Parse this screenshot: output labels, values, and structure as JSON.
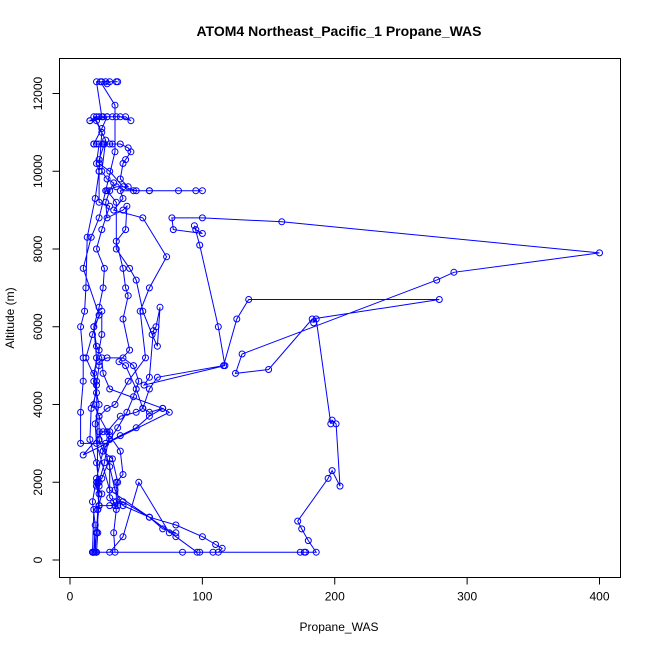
{
  "chart_data": {
    "type": "line",
    "title": "ATOM4 Northeast_Pacific_1 Propane_WAS",
    "xlabel": "Propane_WAS",
    "ylabel": "Altitude (m)",
    "xlim": [
      0,
      400
    ],
    "ylim": [
      0,
      12000
    ],
    "xticks": [
      0,
      100,
      200,
      300,
      400
    ],
    "yticks": [
      0,
      2000,
      4000,
      6000,
      8000,
      10000,
      12000
    ],
    "grid": false,
    "legend": "none",
    "color": "#0000ff",
    "series": [
      {
        "points": [
          [
            17,
            200
          ],
          [
            18,
            200
          ],
          [
            20,
            700
          ],
          [
            22,
            1400
          ],
          [
            21,
            2000
          ],
          [
            20,
            4600
          ],
          [
            12,
            5200
          ],
          [
            17,
            5800
          ],
          [
            22,
            6300
          ],
          [
            10,
            7500
          ],
          [
            16,
            8300
          ],
          [
            22,
            8800
          ],
          [
            27,
            9500
          ],
          [
            34,
            10500
          ],
          [
            34,
            11700
          ],
          [
            23,
            12300
          ],
          [
            27,
            12300
          ],
          [
            35,
            12300
          ],
          [
            36,
            12300
          ],
          [
            30,
            12300
          ],
          [
            28,
            12250
          ],
          [
            24,
            12300
          ],
          [
            20,
            12300
          ],
          [
            24,
            11400
          ],
          [
            15,
            11300
          ],
          [
            28,
            11400
          ],
          [
            24,
            11100
          ],
          [
            18,
            10700
          ],
          [
            30,
            10700
          ],
          [
            26,
            10700
          ],
          [
            22,
            10300
          ],
          [
            22,
            10200
          ],
          [
            30,
            10000
          ],
          [
            40,
            9600
          ],
          [
            50,
            9500
          ],
          [
            60,
            9500
          ],
          [
            100,
            9500
          ],
          [
            95,
            9500
          ],
          [
            82,
            9500
          ],
          [
            60,
            9500
          ],
          [
            48,
            9500
          ],
          [
            38,
            9500
          ],
          [
            40,
            9300
          ],
          [
            33,
            9000
          ],
          [
            55,
            8800
          ],
          [
            73,
            7800
          ],
          [
            60,
            7000
          ],
          [
            53,
            6400
          ],
          [
            57,
            5200
          ],
          [
            44,
            4600
          ],
          [
            34,
            4000
          ],
          [
            28,
            3900
          ],
          [
            22,
            3700
          ],
          [
            22,
            3100
          ],
          [
            25,
            2800
          ],
          [
            32,
            2600
          ],
          [
            36,
            2000
          ],
          [
            36,
            1400
          ],
          [
            34,
            1400
          ],
          [
            30,
            1400
          ],
          [
            22,
            1400
          ],
          [
            18,
            1300
          ],
          [
            17,
            200
          ],
          [
            18,
            200
          ],
          [
            20,
            700
          ],
          [
            22,
            1400
          ],
          [
            20,
            2000
          ],
          [
            24,
            2100
          ],
          [
            30,
            2600
          ],
          [
            30,
            1600
          ],
          [
            33,
            1500
          ],
          [
            35,
            1300
          ],
          [
            33,
            700
          ],
          [
            34,
            200
          ],
          [
            30,
            200
          ],
          [
            40,
            600
          ],
          [
            52,
            2000
          ],
          [
            75,
            700
          ],
          [
            80,
            700
          ],
          [
            70,
            800
          ],
          [
            60,
            1100
          ],
          [
            30,
            1800
          ],
          [
            20,
            3000
          ],
          [
            19,
            3500
          ],
          [
            22,
            4000
          ],
          [
            18,
            4600
          ],
          [
            20,
            5200
          ],
          [
            18,
            6000
          ],
          [
            22,
            6500
          ],
          [
            25,
            7000
          ],
          [
            26,
            7500
          ],
          [
            20,
            8000
          ],
          [
            24,
            8500
          ],
          [
            30,
            9100
          ],
          [
            22,
            9200
          ],
          [
            22,
            10000
          ],
          [
            20,
            10200
          ],
          [
            22,
            10700
          ],
          [
            20,
            10700
          ],
          [
            18,
            10700
          ],
          [
            25,
            10700
          ],
          [
            32,
            10700
          ],
          [
            38,
            10700
          ],
          [
            44,
            10600
          ],
          [
            46,
            10500
          ],
          [
            42,
            10300
          ],
          [
            40,
            10200
          ],
          [
            38,
            9800
          ],
          [
            44,
            9600
          ],
          [
            35,
            9600
          ],
          [
            28,
            9500
          ],
          [
            35,
            9200
          ],
          [
            35,
            8000
          ],
          [
            45,
            7500
          ],
          [
            50,
            7200
          ],
          [
            55,
            6400
          ],
          [
            62,
            5800
          ],
          [
            66,
            5500
          ],
          [
            68,
            6500
          ],
          [
            65,
            6000
          ],
          [
            63,
            5900
          ],
          [
            60,
            4700
          ],
          [
            56,
            4500
          ],
          [
            117,
            5000
          ],
          [
            112,
            6000
          ],
          [
            98,
            8100
          ],
          [
            94,
            8600
          ],
          [
            95,
            8500
          ],
          [
            100,
            8400
          ],
          [
            78,
            8500
          ],
          [
            77,
            8800
          ],
          [
            100,
            8800
          ],
          [
            160,
            8700
          ],
          [
            400,
            7900
          ],
          [
            290,
            7400
          ],
          [
            277,
            7200
          ],
          [
            130,
            5300
          ],
          [
            125,
            4800
          ],
          [
            150,
            4900
          ],
          [
            183,
            6200
          ],
          [
            279,
            6700
          ],
          [
            135,
            6700
          ],
          [
            126,
            6200
          ],
          [
            116,
            5000
          ],
          [
            66,
            4700
          ],
          [
            60,
            4400
          ],
          [
            55,
            3900
          ],
          [
            50,
            3800
          ],
          [
            38,
            3700
          ],
          [
            28,
            3300
          ],
          [
            25,
            3300
          ],
          [
            10,
            2700
          ],
          [
            75,
            3800
          ],
          [
            70,
            3900
          ],
          [
            60,
            3700
          ],
          [
            50,
            3400
          ],
          [
            38,
            3200
          ],
          [
            27,
            3000
          ],
          [
            8,
            3000
          ],
          [
            8,
            3800
          ],
          [
            10,
            4600
          ],
          [
            10,
            5200
          ],
          [
            8,
            6000
          ],
          [
            11,
            6400
          ],
          [
            12,
            7000
          ],
          [
            13,
            8300
          ],
          [
            19,
            9300
          ],
          [
            22,
            10000
          ],
          [
            24,
            11000
          ],
          [
            20,
            11300
          ],
          [
            15,
            11300
          ],
          [
            20,
            11400
          ],
          [
            28,
            11400
          ],
          [
            35,
            11400
          ],
          [
            42,
            11400
          ],
          [
            46,
            11300
          ],
          [
            38,
            11400
          ],
          [
            32,
            11400
          ],
          [
            25,
            11400
          ],
          [
            22,
            11400
          ],
          [
            18,
            11400
          ],
          [
            27,
            10800
          ],
          [
            24,
            10000
          ],
          [
            28,
            9800
          ],
          [
            33,
            9700
          ],
          [
            30,
            9500
          ],
          [
            27,
            9200
          ],
          [
            28,
            8800
          ],
          [
            40,
            9000
          ],
          [
            43,
            9100
          ],
          [
            42,
            8500
          ],
          [
            35,
            8200
          ],
          [
            40,
            7500
          ],
          [
            42,
            7000
          ],
          [
            44,
            6800
          ],
          [
            40,
            6200
          ],
          [
            45,
            5400
          ],
          [
            37,
            5100
          ],
          [
            42,
            5000
          ],
          [
            50,
            4400
          ],
          [
            55,
            3900
          ],
          [
            60,
            3800
          ],
          [
            70,
            3900
          ],
          [
            30,
            4400
          ],
          [
            25,
            4800
          ],
          [
            24,
            5200
          ],
          [
            20,
            5500
          ],
          [
            18,
            6000
          ],
          [
            24,
            6400
          ],
          [
            24,
            5800
          ],
          [
            22,
            5400
          ],
          [
            18,
            4800
          ],
          [
            20,
            4300
          ],
          [
            16,
            3900
          ],
          [
            15,
            3100
          ],
          [
            20,
            2500
          ],
          [
            22,
            1900
          ],
          [
            22,
            1700
          ],
          [
            21,
            1300
          ],
          [
            21,
            700
          ],
          [
            20,
            200
          ],
          [
            19,
            200
          ],
          [
            20,
            700
          ],
          [
            21,
            1300
          ],
          [
            24,
            1700
          ],
          [
            20,
            1900
          ],
          [
            22,
            2000
          ],
          [
            26,
            2500
          ],
          [
            30,
            3300
          ],
          [
            22,
            3300
          ],
          [
            30,
            2400
          ],
          [
            34,
            1800
          ],
          [
            40,
            1400
          ],
          [
            60,
            1100
          ],
          [
            80,
            900
          ],
          [
            100,
            600
          ],
          [
            110,
            400
          ],
          [
            115,
            300
          ],
          [
            112,
            200
          ],
          [
            108,
            200
          ],
          [
            85,
            200
          ],
          [
            98,
            200
          ],
          [
            96,
            200
          ],
          [
            80,
            600
          ],
          [
            60,
            1100
          ],
          [
            40,
            1500
          ],
          [
            35,
            1500
          ],
          [
            35,
            2000
          ],
          [
            40,
            2200
          ],
          [
            38,
            2800
          ],
          [
            30,
            3200
          ],
          [
            22,
            3700
          ],
          [
            18,
            4000
          ],
          [
            20,
            4500
          ],
          [
            22,
            5000
          ],
          [
            22,
            5100
          ],
          [
            28,
            5200
          ],
          [
            40,
            5200
          ],
          [
            48,
            5000
          ],
          [
            52,
            4600
          ],
          [
            48,
            4200
          ],
          [
            43,
            3800
          ],
          [
            36,
            3400
          ],
          [
            30,
            3100
          ],
          [
            25,
            2800
          ],
          [
            20,
            2100
          ],
          [
            17,
            1500
          ],
          [
            19,
            900
          ],
          [
            18,
            200
          ],
          [
            20,
            200
          ],
          [
            174,
            200
          ],
          [
            177,
            200
          ],
          [
            178,
            200
          ],
          [
            186,
            200
          ],
          [
            180,
            500
          ],
          [
            175,
            800
          ],
          [
            172,
            1000
          ],
          [
            195,
            2100
          ],
          [
            198,
            2300
          ],
          [
            204,
            1900
          ],
          [
            201,
            3500
          ],
          [
            198,
            3600
          ],
          [
            197,
            3500
          ],
          [
            186,
            6200
          ],
          [
            184,
            6100
          ]
        ]
      }
    ]
  }
}
